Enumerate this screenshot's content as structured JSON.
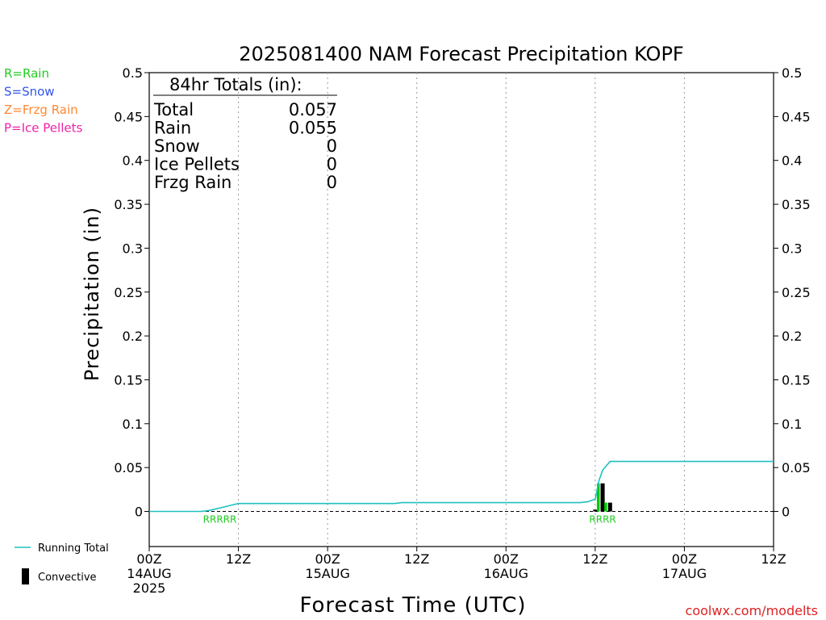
{
  "chart_data": {
    "type": "line",
    "title": "2025081400 NAM Forecast Precipitation KOPF",
    "xlabel": "Forecast Time (UTC)",
    "ylabel": "Precipitation (in)",
    "ylim": [
      -0.04,
      0.5
    ],
    "xlim_hours": [
      0,
      84
    ],
    "yticks": [
      "0",
      "0.05",
      "0.1",
      "0.15",
      "0.2",
      "0.25",
      "0.3",
      "0.35",
      "0.4",
      "0.45",
      "0.5"
    ],
    "xticks": [
      {
        "hour": 0,
        "lines": [
          "00Z",
          "14AUG",
          "2025"
        ]
      },
      {
        "hour": 12,
        "lines": [
          "12Z"
        ]
      },
      {
        "hour": 24,
        "lines": [
          "00Z",
          "15AUG"
        ]
      },
      {
        "hour": 36,
        "lines": [
          "12Z"
        ]
      },
      {
        "hour": 48,
        "lines": [
          "00Z",
          "16AUG"
        ]
      },
      {
        "hour": 60,
        "lines": [
          "12Z"
        ]
      },
      {
        "hour": 72,
        "lines": [
          "00Z",
          "17AUG"
        ]
      },
      {
        "hour": 84,
        "lines": [
          "12Z"
        ]
      }
    ],
    "grid": "vertical dotted at 12h intervals",
    "running_total": {
      "name": "Running Total",
      "color": "#20c0c0",
      "x": [
        0,
        6,
        7,
        8,
        9,
        10,
        11,
        12,
        24,
        33,
        34,
        58,
        59,
        60,
        60.5,
        61,
        61.5,
        62,
        84
      ],
      "y": [
        0,
        0,
        0,
        0.001,
        0.003,
        0.005,
        0.007,
        0.009,
        0.009,
        0.009,
        0.01,
        0.01,
        0.011,
        0.014,
        0.035,
        0.047,
        0.052,
        0.057,
        0.057
      ]
    },
    "convective": {
      "name": "Convective",
      "color": "#000000",
      "x": [
        60,
        61,
        62
      ],
      "y": [
        0.002,
        0.032,
        0.01
      ]
    },
    "rain_bars": {
      "color": "#00cc00",
      "x": [
        60.5,
        61.5
      ],
      "y": [
        0.032,
        0.01
      ]
    },
    "ptype_markers": [
      {
        "hour_start": 7,
        "hour_end": 12,
        "text": "RRRRR",
        "color": "#22cc22"
      },
      {
        "hour_start": 59,
        "hour_end": 63,
        "text": "RRRR",
        "color": "#22cc22"
      }
    ],
    "totals_box": {
      "header": "84hr Totals (in):",
      "rows": [
        {
          "label": "Total",
          "value": "0.057"
        },
        {
          "label": "Rain",
          "value": "0.055"
        },
        {
          "label": "Snow",
          "value": "0"
        },
        {
          "label": "Ice Pellets",
          "value": "0"
        },
        {
          "label": "Frzg Rain",
          "value": "0"
        }
      ]
    },
    "ptype_legend": [
      {
        "text": "R=Rain",
        "color": "#22cc22"
      },
      {
        "text": "S=Snow",
        "color": "#3355ee"
      },
      {
        "text": "Z=Frzg Rain",
        "color": "#ff8833"
      },
      {
        "text": "P=Ice Pellets",
        "color": "#ee22aa"
      }
    ],
    "series_legend": [
      {
        "text": "Running Total",
        "color": "#20c0c0",
        "kind": "line"
      },
      {
        "text": "Convective",
        "color": "#000000",
        "kind": "bar"
      }
    ]
  },
  "credit": {
    "text": "coolwx.com/modelts",
    "color": "#dd2222"
  }
}
